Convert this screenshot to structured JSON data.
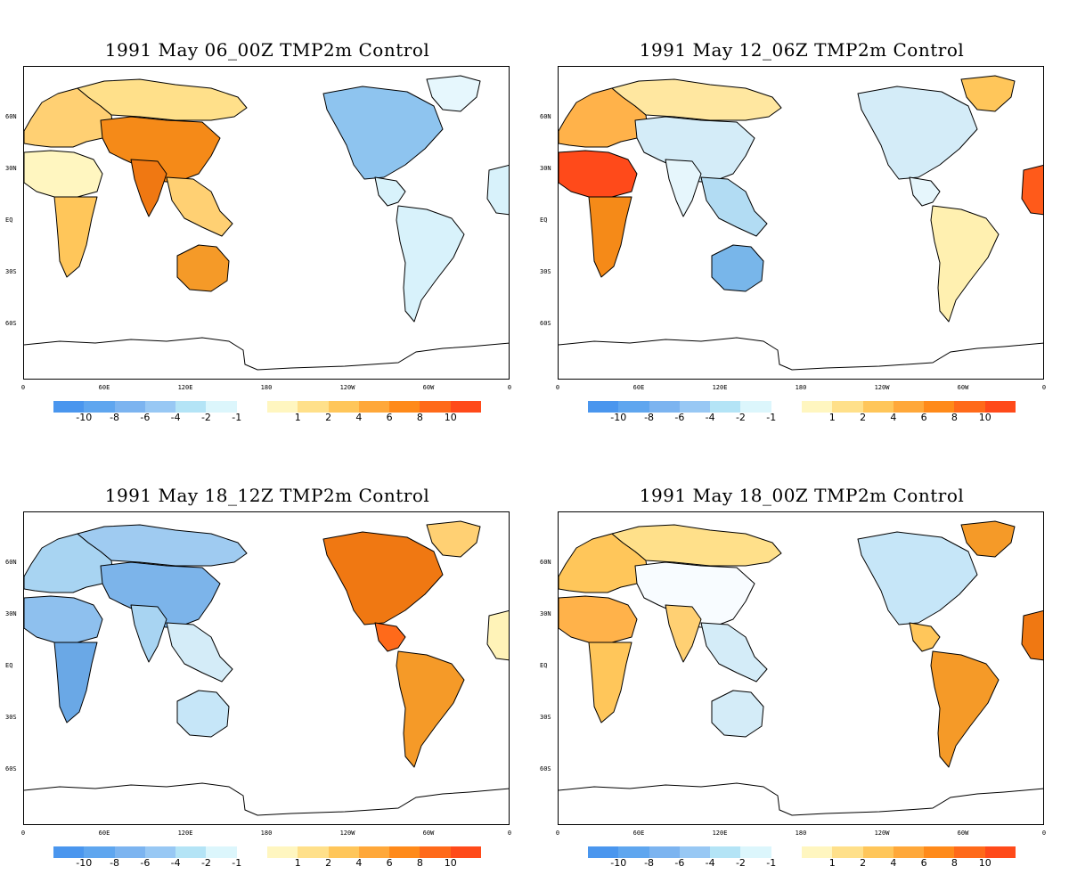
{
  "panels": [
    {
      "title": "1991 May 06_00Z TMP2m Control",
      "regions": {
        "europe": "#ffd073",
        "asia_north": "#ffe08a",
        "asia_central": "#f58a18",
        "india": "#f07812",
        "se_asia": "#ffd073",
        "africa_north": "#fff6c0",
        "africa_south": "#ffc65a",
        "australia": "#f59a28",
        "north_america": "#8ec4ef",
        "greenland": "#e6f7fd",
        "central_america": "#d8f2fb",
        "south_america": "#d8f2fb",
        "iberia": "#d8f2fb"
      }
    },
    {
      "title": "1991 May 12_06Z TMP2m Control",
      "regions": {
        "europe": "#ffb24a",
        "asia_north": "#ffe7a0",
        "asia_central": "#d4ecf8",
        "india": "#e6f6fc",
        "se_asia": "#b2dcf3",
        "africa_north": "#ff4a1a",
        "africa_south": "#f58a18",
        "australia": "#78b6ea",
        "north_america": "#d4ecf8",
        "greenland": "#ffc65a",
        "central_america": "#e6f6fc",
        "south_america": "#fff0b0",
        "iberia": "#ff5a1a"
      }
    },
    {
      "title": "1991 May 18_12Z TMP2m Control",
      "regions": {
        "europe": "#a8d4f2",
        "asia_north": "#9fcbf1",
        "asia_central": "#7cb4ea",
        "india": "#a8d4f2",
        "se_asia": "#d4ecf8",
        "africa_north": "#8ec0ee",
        "africa_south": "#6aa8e6",
        "australia": "#c6e6f8",
        "north_america": "#f07812",
        "greenland": "#ffd073",
        "central_america": "#ff6a1a",
        "south_america": "#f59a28",
        "iberia": "#fff3b8"
      }
    },
    {
      "title": "1991 May 18_00Z TMP2m Control",
      "regions": {
        "europe": "#ffc65a",
        "asia_north": "#ffe08a",
        "asia_central": "#f8fcff",
        "india": "#ffd073",
        "se_asia": "#d4ecf8",
        "africa_north": "#ffb24a",
        "africa_south": "#ffc65a",
        "australia": "#d4ecf8",
        "north_america": "#c6e6f8",
        "greenland": "#f59a28",
        "central_america": "#ffc65a",
        "south_america": "#f59a28",
        "iberia": "#f07812"
      }
    }
  ],
  "lat_labels": [
    "60N",
    "30N",
    "EQ",
    "30S",
    "60S"
  ],
  "lon_labels": [
    "0",
    "60E",
    "120E",
    "180",
    "120W",
    "60W",
    "0"
  ],
  "colorbar": {
    "colors": [
      "#4a96ee",
      "#5fa6ef",
      "#7cb4f0",
      "#98c8f4",
      "#b4e4f6",
      "#dcf6fc",
      "#ffffff",
      "#fff6c0",
      "#ffe08a",
      "#ffc65a",
      "#ffa83a",
      "#ff8a1a",
      "#ff6a1a",
      "#ff4a1a"
    ],
    "labels": [
      "-10",
      "-8",
      "-6",
      "-4",
      "-2",
      "-1",
      "1",
      "2",
      "4",
      "6",
      "8",
      "10"
    ]
  }
}
